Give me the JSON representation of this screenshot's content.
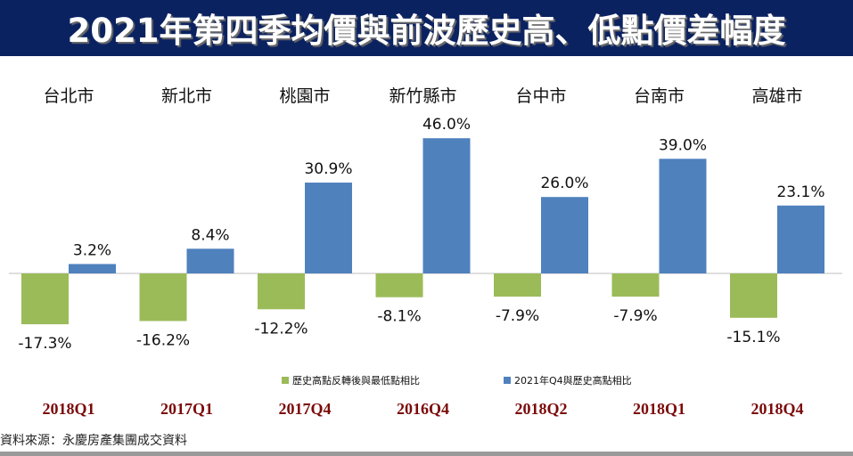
{
  "chart_data": {
    "type": "bar",
    "title": "2021年第四季均價與前波歷史高、低點價差幅度",
    "categories": [
      "台北市",
      "新北市",
      "桃園市",
      "新竹縣市",
      "台中市",
      "台南市",
      "高雄市"
    ],
    "periods": [
      "2018Q1",
      "2017Q1",
      "2017Q4",
      "2016Q4",
      "2018Q2",
      "2018Q1",
      "2018Q4"
    ],
    "series": [
      {
        "name": "歷史高點反轉後與最低點相比",
        "color": "#9bbb59",
        "values": [
          -17.3,
          -16.2,
          -12.2,
          -8.1,
          -7.9,
          -7.9,
          -15.1
        ],
        "labels": [
          "-17.3%",
          "-16.2%",
          "-12.2%",
          "-8.1%",
          "-7.9%",
          "-7.9%",
          "-15.1%"
        ]
      },
      {
        "name": "2021年Q4與歷史高點相比",
        "color": "#4f81bd",
        "values": [
          3.2,
          8.4,
          30.9,
          46.0,
          26.0,
          39.0,
          23.1
        ],
        "labels": [
          "3.2%",
          "8.4%",
          "30.9%",
          "46.0%",
          "26.0%",
          "39.0%",
          "23.1%"
        ]
      }
    ],
    "unit": "%",
    "legend": "bottom",
    "grid": false
  },
  "source": "資料來源：永慶房產集團成交資料",
  "colors": {
    "header_bg": "#0b2261",
    "period_text": "#7b0a0a"
  }
}
